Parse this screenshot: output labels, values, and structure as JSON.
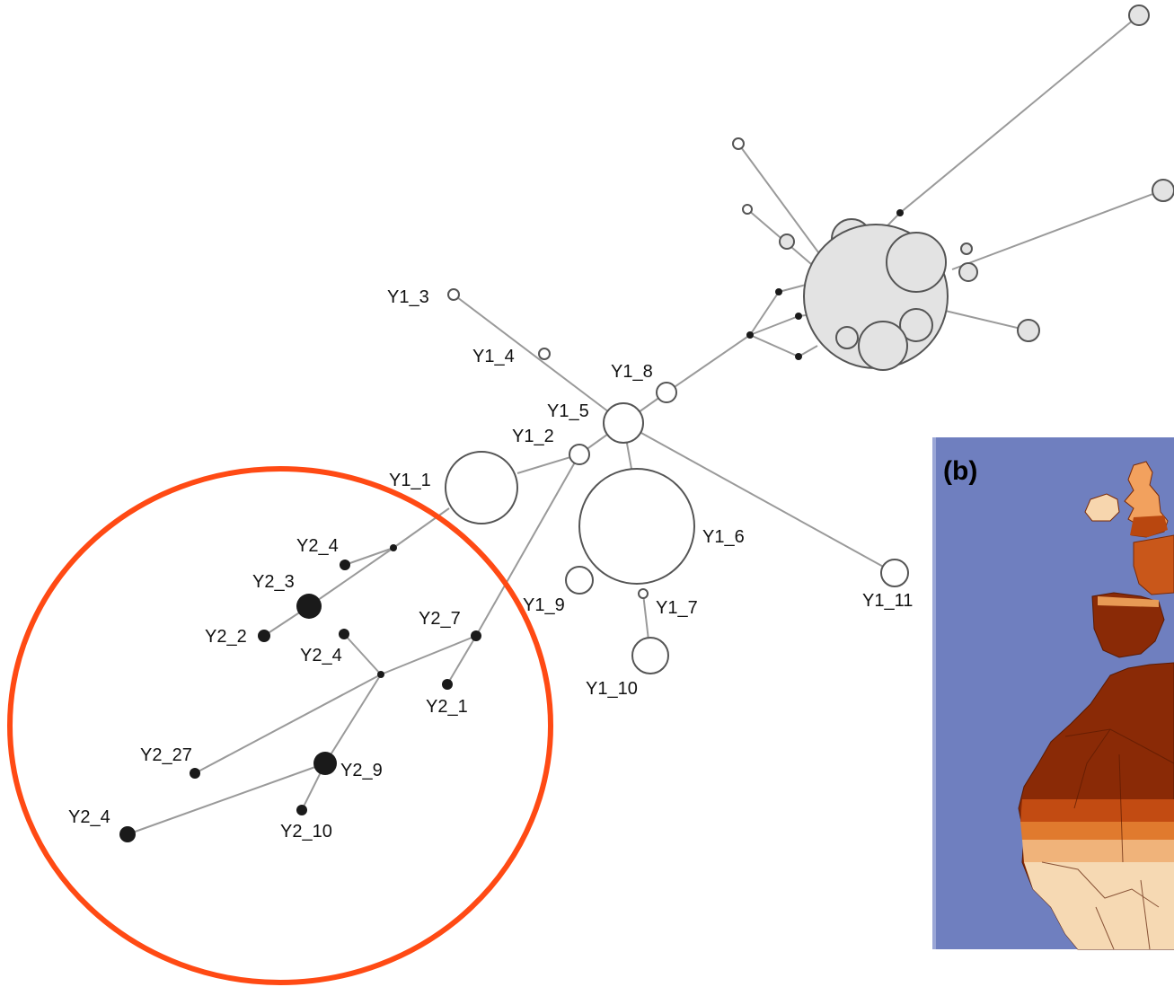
{
  "panel": {
    "label": "(b)"
  },
  "colors": {
    "edge": "#9a9a9a",
    "node_outline": "#555555",
    "y1_fill": "#ffffff",
    "cluster_fill": "#e3e3e3",
    "y2_fill": "#1a1a1a",
    "highlight_ring": "#ff4a14",
    "map_sea": "#6f7fbf",
    "map_land_dark": "#8a2a06",
    "map_land_mid": "#d4631f",
    "map_land_light": "#f6d9b3"
  },
  "nodes": [
    {
      "id": "Y1_3",
      "label": "Y1_3",
      "group": "Y1"
    },
    {
      "id": "Y1_4",
      "label": "Y1_4",
      "group": "Y1"
    },
    {
      "id": "Y1_8",
      "label": "Y1_8",
      "group": "Y1"
    },
    {
      "id": "Y1_5",
      "label": "Y1_5",
      "group": "Y1"
    },
    {
      "id": "Y1_2",
      "label": "Y1_2",
      "group": "Y1"
    },
    {
      "id": "Y1_1",
      "label": "Y1_1",
      "group": "Y1"
    },
    {
      "id": "Y1_6",
      "label": "Y1_6",
      "group": "Y1"
    },
    {
      "id": "Y1_9",
      "label": "Y1_9",
      "group": "Y1"
    },
    {
      "id": "Y1_7",
      "label": "Y1_7",
      "group": "Y1"
    },
    {
      "id": "Y1_10",
      "label": "Y1_10",
      "group": "Y1"
    },
    {
      "id": "Y1_11",
      "label": "Y1_11",
      "group": "Y1"
    },
    {
      "id": "Y2_4a",
      "label": "Y2_4",
      "group": "Y2"
    },
    {
      "id": "Y2_3",
      "label": "Y2_3",
      "group": "Y2"
    },
    {
      "id": "Y2_2",
      "label": "Y2_2",
      "group": "Y2"
    },
    {
      "id": "Y2_4b",
      "label": "Y2_4",
      "group": "Y2"
    },
    {
      "id": "Y2_7",
      "label": "Y2_7",
      "group": "Y2"
    },
    {
      "id": "Y2_1",
      "label": "Y2_1",
      "group": "Y2"
    },
    {
      "id": "Y2_27",
      "label": "Y2_27",
      "group": "Y2"
    },
    {
      "id": "Y2_9",
      "label": "Y2_9",
      "group": "Y2"
    },
    {
      "id": "Y2_10",
      "label": "Y2_10",
      "group": "Y2"
    },
    {
      "id": "Y2_4c",
      "label": "Y2_4",
      "group": "Y2"
    }
  ]
}
